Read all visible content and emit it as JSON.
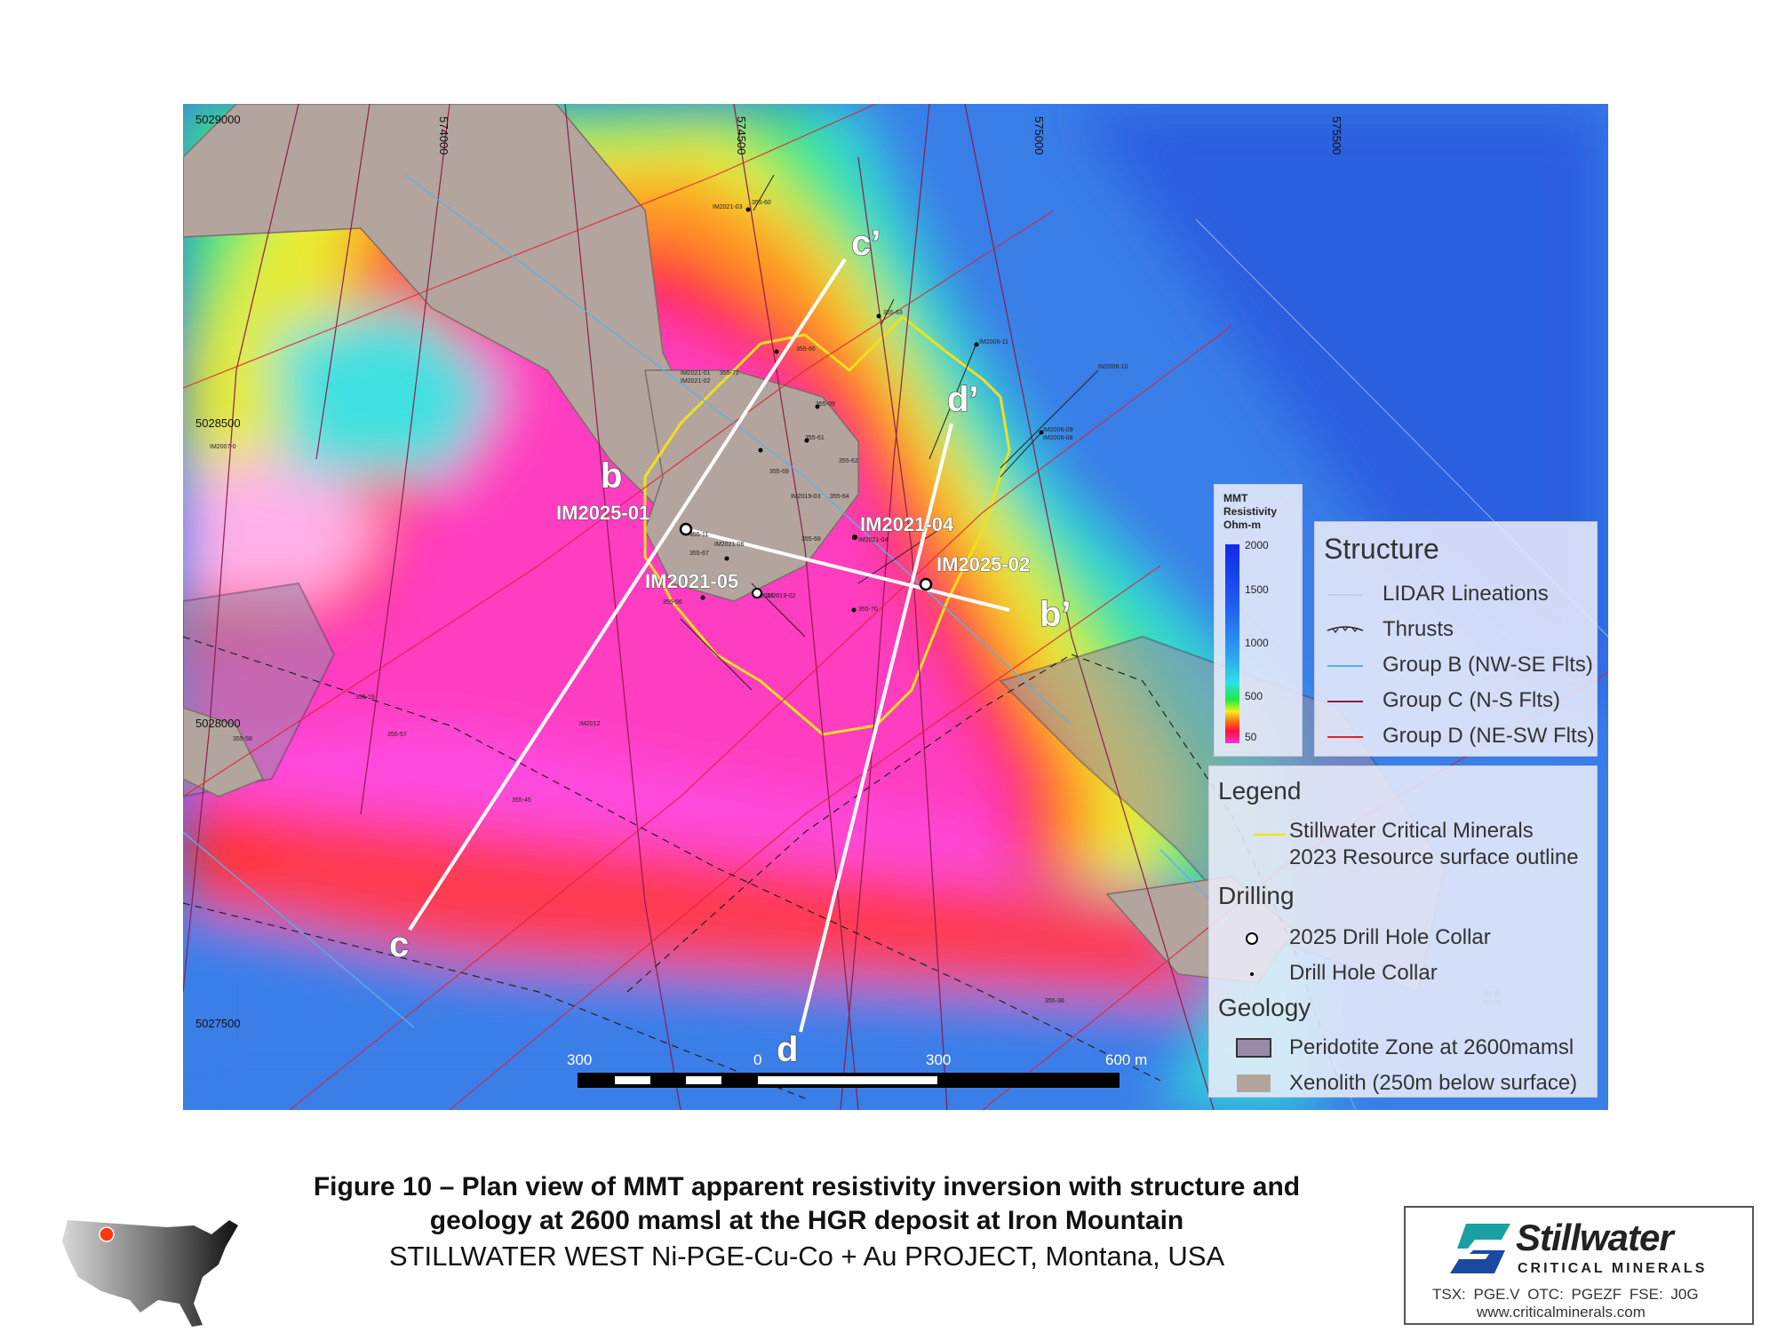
{
  "map": {
    "coords_x": [
      "574000",
      "574500",
      "575000",
      "575500"
    ],
    "coords_y": [
      "5029000",
      "5028500",
      "5028000",
      "5027500"
    ],
    "section_labels": [
      "b",
      "b’",
      "c",
      "c’",
      "d",
      "d’"
    ],
    "holes_2025": [
      "IM2025-01",
      "IM2025-02"
    ],
    "holes_highlight": [
      "IM2021-04",
      "IM2021-05"
    ],
    "small_labels": [
      "IM2021-03",
      "355-60",
      "355-63",
      "IM2006-11",
      "IM2006-10",
      "355-66",
      "IM2021-01",
      "IM2021-02",
      "355-72",
      "355-09",
      "355-61",
      "IM2006-09",
      "IM2006-08",
      "355-62",
      "355-69",
      "IM2019-03",
      "355-64",
      "IM2007-0",
      "355-11",
      "IM2021-06",
      "355-67",
      "355-68",
      "IM2021-04",
      "355-56",
      "IM2021-0",
      "IM2019-02",
      "355-70",
      "355-19",
      "355-57",
      "IM2012",
      "355-45",
      "355-58",
      "355-36",
      "355-65",
      "355-59"
    ],
    "colorbar": {
      "title": [
        "MMT",
        "Resistivity",
        "Ohm-m"
      ],
      "ticks": [
        "2000",
        "1500",
        "1000",
        "500",
        "50"
      ]
    },
    "scalebar": {
      "labels": [
        "300",
        "0",
        "300",
        "600 m"
      ]
    }
  },
  "structure": {
    "title": "Structure",
    "items": [
      {
        "label": "LIDAR Lineations",
        "color": "#c8ccee"
      },
      {
        "label": "Thrusts",
        "color": "#222222"
      },
      {
        "label": "Group B (NW-SE Flts)",
        "color": "#5ab0e8"
      },
      {
        "label": "Group C (N-S Flts)",
        "color": "#8a1a4a"
      },
      {
        "label": "Group D (NE-SW Flts)",
        "color": "#e02030"
      }
    ]
  },
  "legend": {
    "title": "Legend",
    "outline": [
      "Stillwater Critical Minerals",
      "2023 Resource surface outline"
    ],
    "drilling_title": "Drilling",
    "drilling": [
      "2025 Drill Hole Collar",
      "Drill Hole Collar"
    ],
    "geology_title": "Geology",
    "geology": [
      "Peridotite Zone at 2600mamsl",
      "Xenolith (250m below surface)"
    ],
    "colors": {
      "outline": "#f0e020",
      "peridotite": "#9a8aa8",
      "xenolith": "#b3a59d"
    }
  },
  "caption": {
    "line1": "Figure 10  –  Plan view of MMT apparent resistivity inversion with structure and",
    "line2": "geology at 2600 mamsl at the HGR deposit at Iron Mountain",
    "line3": "STILLWATER WEST Ni-PGE-Cu-Co + Au PROJECT, Montana, USA"
  },
  "logo": {
    "name": "Stillwater",
    "sub": "CRITICAL MINERALS",
    "tickers": "TSX: PGE.V  OTC: PGEZF  FSE: J0G",
    "url": "www.criticalminerals.com",
    "colors": {
      "teal": "#1aa0a0",
      "blue": "#1a4aa0"
    }
  }
}
